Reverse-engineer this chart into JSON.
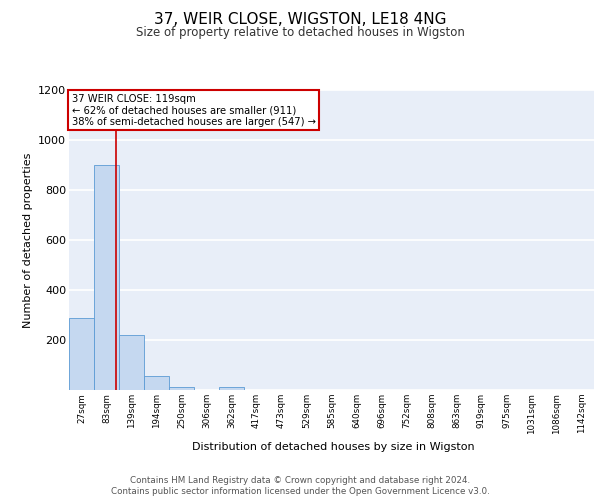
{
  "title": "37, WEIR CLOSE, WIGSTON, LE18 4NG",
  "subtitle": "Size of property relative to detached houses in Wigston",
  "xlabel": "Distribution of detached houses by size in Wigston",
  "ylabel": "Number of detached properties",
  "bin_labels": [
    "27sqm",
    "83sqm",
    "139sqm",
    "194sqm",
    "250sqm",
    "306sqm",
    "362sqm",
    "417sqm",
    "473sqm",
    "529sqm",
    "585sqm",
    "640sqm",
    "696sqm",
    "752sqm",
    "808sqm",
    "863sqm",
    "919sqm",
    "975sqm",
    "1031sqm",
    "1086sqm",
    "1142sqm"
  ],
  "bar_heights": [
    290,
    900,
    220,
    55,
    12,
    0,
    12,
    0,
    0,
    0,
    0,
    0,
    0,
    0,
    0,
    0,
    0,
    0,
    0,
    0,
    0
  ],
  "bar_color": "#c5d8f0",
  "bar_edge_color": "#5b9bd5",
  "bg_color": "#e8eef8",
  "grid_color": "#ffffff",
  "red_line_x": 1.38,
  "annotation_text": "37 WEIR CLOSE: 119sqm\n← 62% of detached houses are smaller (911)\n38% of semi-detached houses are larger (547) →",
  "annotation_box_color": "#ffffff",
  "annotation_border_color": "#cc0000",
  "footer_line1": "Contains HM Land Registry data © Crown copyright and database right 2024.",
  "footer_line2": "Contains public sector information licensed under the Open Government Licence v3.0.",
  "ylim": [
    0,
    1200
  ],
  "yticks": [
    0,
    200,
    400,
    600,
    800,
    1000,
    1200
  ]
}
